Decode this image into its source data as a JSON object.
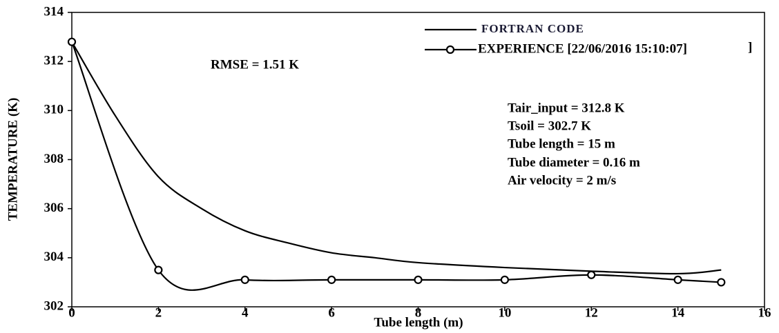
{
  "chart_data": {
    "type": "line",
    "xlabel": "Tube length (m)",
    "ylabel": "TEMPERATURE (K)",
    "xlim": [
      0,
      16
    ],
    "xticks": [
      0,
      2,
      4,
      6,
      8,
      10,
      12,
      14,
      16
    ],
    "ylim": [
      302,
      314
    ],
    "yticks": [
      302,
      304,
      306,
      308,
      310,
      312,
      314
    ],
    "series": [
      {
        "name": "FORTRAN CODE",
        "color": "#000000",
        "marker": false,
        "x": [
          0,
          1,
          2,
          3,
          4,
          5,
          6,
          7,
          8,
          10,
          12,
          14,
          15
        ],
        "values": [
          312.8,
          309.8,
          307.3,
          306.0,
          305.1,
          304.6,
          304.2,
          304.0,
          303.8,
          303.6,
          303.45,
          303.35,
          303.5
        ]
      },
      {
        "name": "EXPERIENCE [22/06/2016  15:10:07]",
        "color": "#000000",
        "marker": true,
        "x": [
          0,
          2,
          4,
          6,
          8,
          10,
          12,
          14,
          15
        ],
        "values": [
          312.8,
          303.5,
          303.1,
          303.1,
          303.1,
          303.1,
          303.3,
          303.1,
          303.0
        ]
      }
    ],
    "annotations": [
      "RMSE = 1.51 K",
      "]",
      "Tair_input = 312.8 K",
      "Tsoil =  302.7 K",
      "Tube length = 15 m",
      "Tube diameter = 0.16 m",
      "Air velocity =  2 m/s"
    ]
  }
}
